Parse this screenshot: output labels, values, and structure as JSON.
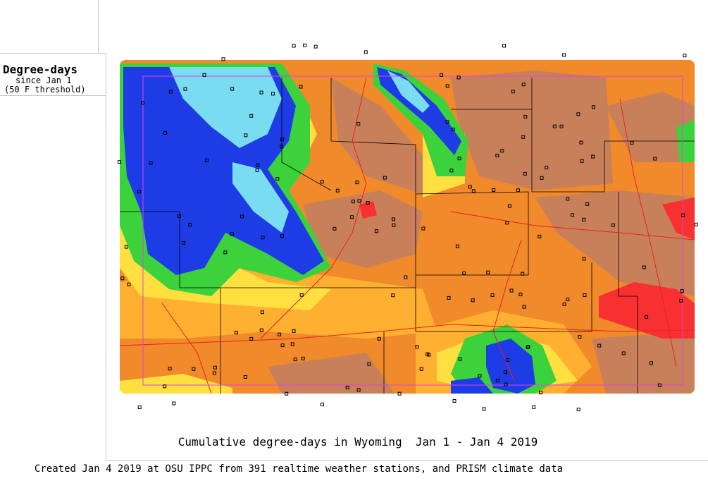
{
  "legend": {
    "title": "Degree-days",
    "subtitle_1": "since Jan 1",
    "subtitle_2": "(50 F threshold)"
  },
  "map": {
    "title": "Cumulative degree-days in Wyoming  Jan 1 - Jan 4 2019"
  },
  "footer": {
    "credit": "Created Jan 4 2019 at OSU IPPC from 391 realtime weather stations, and PRISM climate data"
  }
}
